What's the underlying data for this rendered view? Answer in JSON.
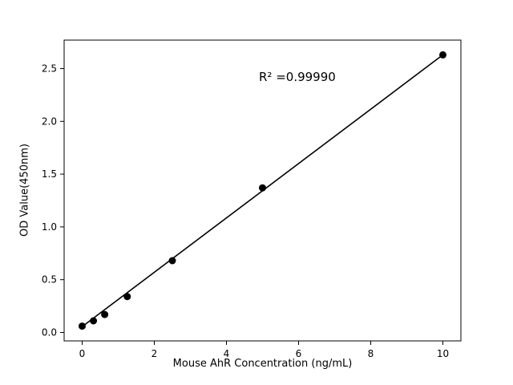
{
  "chart_data": {
    "type": "scatter",
    "title": "",
    "xlabel": "Mouse AhR Concentration (ng/mL)",
    "ylabel": "OD Value(450nm)",
    "x": [
      0,
      0.3125,
      0.625,
      1.25,
      2.5,
      5,
      10
    ],
    "y": [
      0.06,
      0.11,
      0.17,
      0.34,
      0.68,
      1.37,
      2.63
    ],
    "fit_line": {
      "x": [
        0,
        10
      ],
      "y": [
        0.055,
        2.63
      ]
    },
    "annotation": {
      "text": "R² =0.99990",
      "x": 4.9,
      "y": 2.42
    },
    "xlim": [
      -0.5,
      10.5
    ],
    "ylim": [
      -0.08,
      2.77
    ],
    "xticks": [
      0,
      2,
      4,
      6,
      8,
      10
    ],
    "xtick_labels": [
      "0",
      "2",
      "4",
      "6",
      "8",
      "10"
    ],
    "yticks": [
      0.0,
      0.5,
      1.0,
      1.5,
      2.0,
      2.5
    ],
    "ytick_labels": [
      "0.0",
      "0.5",
      "1.0",
      "1.5",
      "2.0",
      "2.5"
    ],
    "grid": false,
    "legend": false,
    "background_color": "#ffffff",
    "point_color": "#000000",
    "line_color": "#000000",
    "axis_color": "#000000"
  }
}
